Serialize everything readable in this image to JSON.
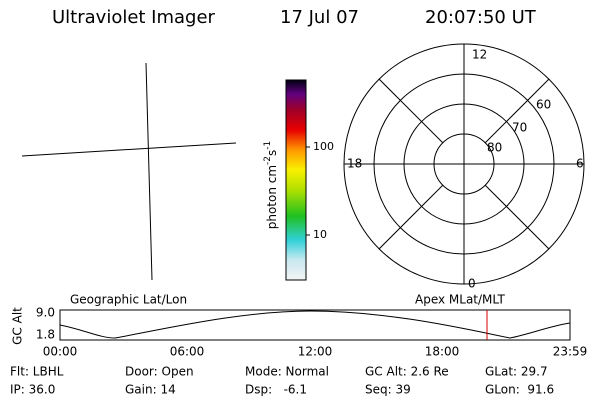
{
  "header": {
    "title": "Ultraviolet Imager",
    "date": "17 Jul 07",
    "time": "20:07:50 UT"
  },
  "colorbar": {
    "label": [
      "photon cm",
      "-2",
      "s",
      "-1"
    ],
    "ticks": [
      "100",
      "10"
    ]
  },
  "polar": {
    "mlt_labels": [
      "12",
      "18",
      "6",
      "0"
    ],
    "lat_labels": [
      "60",
      "70",
      "80"
    ]
  },
  "timeline": {
    "left_title": "Geographic Lat/Lon",
    "right_title": "Apex MLat/MLT",
    "y_label": "GC Alt",
    "y_ticks": [
      "9.0",
      "1.8"
    ],
    "x_ticks": [
      "00:00",
      "06:00",
      "12:00",
      "18:00",
      "23:59"
    ]
  },
  "info": [
    [
      "Flt: LBHL",
      "Door: Open",
      "Mode: Normal",
      "GC Alt: 2.6 Re",
      "GLat: 29.7"
    ],
    [
      "IP: 36.0",
      "Gain: 14",
      "Dsp:   -6.1",
      "Seq: 39",
      "GLon:  91.6"
    ]
  ]
}
